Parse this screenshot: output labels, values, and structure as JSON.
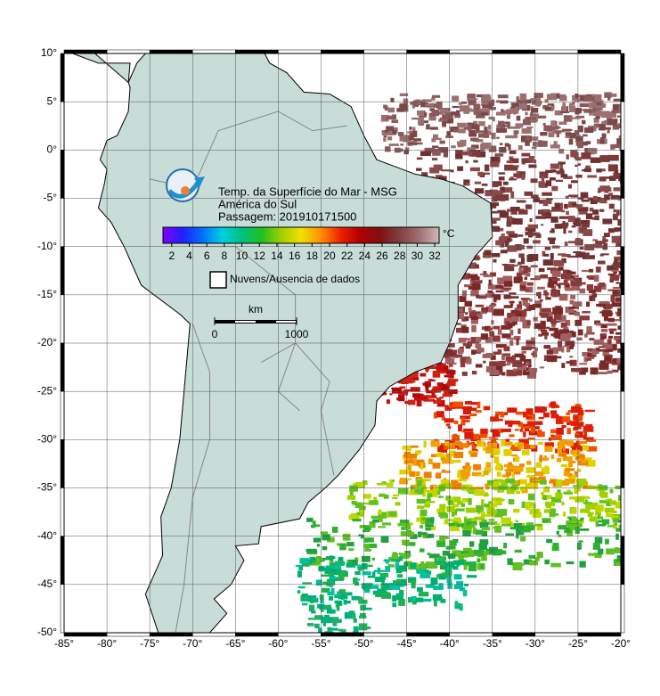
{
  "map": {
    "title_lines": [
      "Temp. da Superfície do Mar - MSG",
      "América do Sul",
      "Passagem: 201910171500"
    ],
    "lon_range": [
      -85,
      -20
    ],
    "lat_range": [
      -50,
      10
    ],
    "grid": true,
    "lon_ticks": [
      {
        "value": -85,
        "label": "-85°"
      },
      {
        "value": -80,
        "label": "-80°"
      },
      {
        "value": -75,
        "label": "-75°"
      },
      {
        "value": -70,
        "label": "-70°"
      },
      {
        "value": -65,
        "label": "-65°"
      },
      {
        "value": -60,
        "label": "-60°"
      },
      {
        "value": -55,
        "label": "-55°"
      },
      {
        "value": -50,
        "label": "-50°"
      },
      {
        "value": -45,
        "label": "-45°"
      },
      {
        "value": -40,
        "label": "-40°"
      },
      {
        "value": -35,
        "label": "-35°"
      },
      {
        "value": -30,
        "label": "-30°"
      },
      {
        "value": -25,
        "label": "-25°"
      },
      {
        "value": -20,
        "label": "-20°"
      }
    ],
    "lat_ticks": [
      {
        "value": 10,
        "label": "10°"
      },
      {
        "value": 5,
        "label": "5°"
      },
      {
        "value": 0,
        "label": "0°"
      },
      {
        "value": -5,
        "label": "-5°"
      },
      {
        "value": -10,
        "label": "-10°"
      },
      {
        "value": -15,
        "label": "-15°"
      },
      {
        "value": -20,
        "label": "-20°"
      },
      {
        "value": -25,
        "label": "-25°"
      },
      {
        "value": -30,
        "label": "-30°"
      },
      {
        "value": -35,
        "label": "-35°"
      },
      {
        "value": -40,
        "label": "-40°"
      },
      {
        "value": -45,
        "label": "-45°"
      },
      {
        "value": -50,
        "label": "-50°"
      }
    ],
    "colorbar": {
      "unit": "°C",
      "range": [
        1,
        32.5
      ],
      "ticks": [
        2,
        4,
        6,
        8,
        10,
        12,
        14,
        16,
        18,
        20,
        22,
        24,
        26,
        28,
        30,
        32
      ],
      "colors": [
        "#8000ff",
        "#2020ff",
        "#0070ff",
        "#00d0e0",
        "#00c080",
        "#20c020",
        "#a0d000",
        "#f0e000",
        "#ff9000",
        "#f02000",
        "#b00000",
        "#801010",
        "#804040",
        "#a07070",
        "#d0b8b8"
      ]
    },
    "legend": "Nuvens/Ausencia de dados",
    "scale_bar": {
      "unit": "km",
      "ticks": [
        0,
        1000
      ]
    }
  }
}
